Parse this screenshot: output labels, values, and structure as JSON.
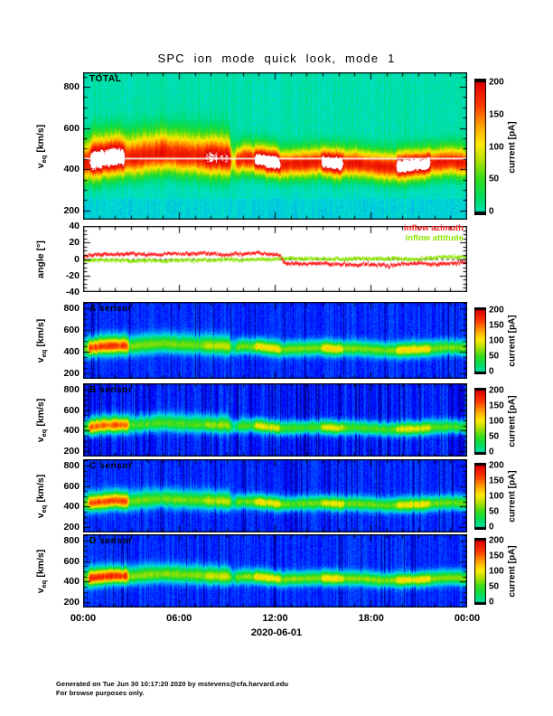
{
  "title": "SPC ion mode quick look, mode 1",
  "time_axis": {
    "ticks": [
      "00:00",
      "06:00",
      "12:00",
      "18:00",
      "00:00"
    ],
    "tick_hours": [
      0,
      6,
      12,
      18,
      24
    ],
    "minor_tick_hours": 1,
    "date": "2020-06-01",
    "hours_span": 24
  },
  "footer": {
    "line1": "Generated on Tue Jun 30 10:17:20 2020 by mstevens@cfa.harvard.edu",
    "line2": "For browse purposes only."
  },
  "colors": {
    "background": "#ffffff",
    "frame": "#000000",
    "saturated": "#ffffff",
    "azimuth": "#ff2222",
    "attitude": "#8ce600"
  },
  "colormap": {
    "stops": [
      [
        0,
        "#000082"
      ],
      [
        0.1,
        "#0000ff"
      ],
      [
        0.2,
        "#008cff"
      ],
      [
        0.3,
        "#00e1d2"
      ],
      [
        0.4,
        "#00dc64"
      ],
      [
        0.5,
        "#32dc1e"
      ],
      [
        0.6,
        "#b4e100"
      ],
      [
        0.68,
        "#ffeb00"
      ],
      [
        0.78,
        "#ffa000"
      ],
      [
        0.88,
        "#ff3c00"
      ],
      [
        1,
        "#e10000"
      ]
    ],
    "saturation_threshold": 1.03,
    "colorbar_range": [
      0.33,
      1.0
    ]
  },
  "speed_profile_kms": {
    "t": [
      0,
      1,
      2,
      3,
      4,
      5,
      6,
      7,
      8,
      9,
      9.4,
      10,
      11,
      12,
      12.4,
      13,
      14,
      15,
      16,
      17,
      18,
      19,
      20,
      21,
      22,
      23,
      24
    ],
    "v": [
      425,
      445,
      455,
      450,
      465,
      475,
      465,
      460,
      455,
      450,
      435,
      450,
      445,
      430,
      420,
      425,
      430,
      435,
      425,
      430,
      420,
      410,
      415,
      420,
      430,
      440,
      430
    ]
  },
  "chart_data": [
    {
      "id": "total",
      "type": "heatmap",
      "label": "TOTAL",
      "ylabel": {
        "var": "v",
        "sub": "eq",
        "unit": "[km/s]"
      },
      "ylim": [
        155,
        870
      ],
      "yticks": [
        200,
        400,
        600,
        800
      ],
      "y_minor": 50,
      "y_major": 200,
      "colorbar": {
        "label": "current [pA]",
        "ticks": [
          200,
          150,
          100,
          50,
          0
        ],
        "lim": [
          0,
          200
        ]
      },
      "model": {
        "levels": {
          "bg": 0.315,
          "base": 0.95,
          "first": 1.16,
          "mid": 1.02,
          "hot": 1.16
        },
        "hot_intervals": [
          [
            0.4,
            2.6
          ],
          [
            7.6,
            9.2
          ],
          [
            10.7,
            12.3
          ],
          [
            14.9,
            16.3
          ],
          [
            19.6,
            21.7
          ]
        ],
        "sigma": {
          "hi0": 75,
          "hi1": 50,
          "lo0": 58,
          "lo1": 46,
          "switch_t": 9.2
        },
        "gap_t": 9.4,
        "white_line_v": 455,
        "bg_gradient": true,
        "noise": {
          "stripe": 0.05,
          "pix": 0.06,
          "dark_prob": 0.0
        }
      }
    },
    {
      "id": "angle",
      "type": "line",
      "ylabel": {
        "var": "angle",
        "sub": "",
        "unit": "[°]"
      },
      "ylim": [
        -40,
        40
      ],
      "yticks": [
        40,
        20,
        0,
        -20,
        -40
      ],
      "y_minor": 5,
      "y_major": 20,
      "zero_line": true,
      "series": [
        {
          "name": "inflow azimuth",
          "color": "#ff2222",
          "t": [
            0,
            0.3,
            1,
            2,
            3,
            4,
            5,
            5.5,
            6,
            7,
            7.5,
            8,
            9,
            9.5,
            10,
            10.5,
            11,
            11.5,
            12,
            12.35,
            12.5,
            13,
            14,
            15,
            16,
            17,
            18,
            19,
            20,
            21,
            22,
            23,
            23.5,
            24
          ],
          "v": [
            3,
            5,
            6,
            6,
            7,
            6,
            6,
            7,
            6,
            7,
            8,
            7,
            5,
            7,
            6,
            7,
            8,
            6,
            6,
            5,
            -4,
            -5,
            -6,
            -5,
            -6,
            -7,
            -6,
            -7,
            -6,
            -5,
            -6,
            -5,
            -4,
            -5
          ]
        },
        {
          "name": "inflow attitude",
          "color": "#8ce600",
          "t": [
            0,
            1,
            2,
            3,
            4,
            5,
            6,
            7,
            8,
            9,
            10,
            11,
            12,
            12.5,
            13,
            14,
            15,
            16,
            17,
            18,
            19,
            20,
            21,
            22,
            22.8,
            23.5,
            24
          ],
          "v": [
            -1,
            -1,
            -1,
            -2,
            -1,
            -2,
            -1,
            -1,
            -1,
            0,
            -1,
            0,
            0,
            1,
            1,
            1,
            1,
            0,
            1,
            1,
            1,
            1,
            0,
            2,
            3,
            3,
            3
          ]
        }
      ]
    },
    {
      "id": "a",
      "type": "heatmap",
      "label": "A sensor",
      "ylabel": {
        "var": "v",
        "sub": "eq",
        "unit": "[km/s]"
      },
      "ylim": [
        150,
        862
      ],
      "yticks": [
        200,
        400,
        600,
        800
      ],
      "y_minor": 50,
      "y_major": 200,
      "colorbar": {
        "label": "current [pA]",
        "ticks": [
          200,
          150,
          100,
          50,
          0
        ],
        "lim": [
          0,
          200
        ]
      },
      "model": {
        "levels": {
          "bg": 0.13,
          "base": 0.56,
          "first": 0.9,
          "mid": 0.62,
          "hot": 0.7
        },
        "hot_intervals": [
          [
            0.3,
            2.8
          ],
          [
            7.6,
            9.2
          ],
          [
            10.7,
            12.3
          ],
          [
            14.9,
            16.3
          ],
          [
            19.6,
            21.7
          ]
        ],
        "sigma": {
          "hi0": 60,
          "hi1": 46,
          "lo0": 50,
          "lo1": 42,
          "switch_t": 9.2
        },
        "gap_t": 9.4,
        "white_line_v": null,
        "bg_gradient": false,
        "noise": {
          "stripe": 0.055,
          "pix": 0.055,
          "dark_prob": 0.04
        }
      }
    },
    {
      "id": "b",
      "type": "heatmap",
      "label": "B sensor",
      "ylabel": {
        "var": "v",
        "sub": "eq",
        "unit": "[km/s]"
      },
      "ylim": [
        150,
        860
      ],
      "yticks": [
        200,
        400,
        600,
        800
      ],
      "y_minor": 50,
      "y_major": 200,
      "colorbar": {
        "label": "current [pA]",
        "ticks": [
          200,
          150,
          100,
          50,
          0
        ],
        "lim": [
          0,
          200
        ]
      },
      "model": {
        "levels": {
          "bg": 0.12,
          "base": 0.52,
          "first": 0.86,
          "mid": 0.58,
          "hot": 0.66
        },
        "hot_intervals": [
          [
            0.3,
            2.8
          ],
          [
            7.6,
            9.2
          ],
          [
            10.7,
            12.3
          ],
          [
            14.9,
            16.3
          ],
          [
            19.6,
            21.7
          ]
        ],
        "sigma": {
          "hi0": 58,
          "hi1": 45,
          "lo0": 48,
          "lo1": 41,
          "switch_t": 9.2
        },
        "gap_t": 9.4,
        "white_line_v": null,
        "bg_gradient": false,
        "noise": {
          "stripe": 0.08,
          "pix": 0.06,
          "dark_prob": 0.1
        }
      }
    },
    {
      "id": "c",
      "type": "heatmap",
      "label": "C sensor",
      "ylabel": {
        "var": "v",
        "sub": "eq",
        "unit": "[km/s]"
      },
      "ylim": [
        150,
        860
      ],
      "yticks": [
        200,
        400,
        600,
        800
      ],
      "y_minor": 50,
      "y_major": 200,
      "colorbar": {
        "label": "current [pA]",
        "ticks": [
          200,
          150,
          100,
          50,
          0
        ],
        "lim": [
          0,
          200
        ]
      },
      "model": {
        "levels": {
          "bg": 0.13,
          "base": 0.55,
          "first": 0.88,
          "mid": 0.61,
          "hot": 0.68
        },
        "hot_intervals": [
          [
            0.3,
            2.8
          ],
          [
            7.6,
            9.2
          ],
          [
            10.7,
            12.3
          ],
          [
            14.9,
            16.3
          ],
          [
            19.6,
            21.7
          ]
        ],
        "sigma": {
          "hi0": 60,
          "hi1": 46,
          "lo0": 50,
          "lo1": 42,
          "switch_t": 9.2
        },
        "gap_t": 9.4,
        "white_line_v": null,
        "bg_gradient": false,
        "noise": {
          "stripe": 0.055,
          "pix": 0.055,
          "dark_prob": 0.05
        }
      }
    },
    {
      "id": "d",
      "type": "heatmap",
      "label": "D sensor",
      "ylabel": {
        "var": "v",
        "sub": "eq",
        "unit": "[km/s]"
      },
      "ylim": [
        150,
        860
      ],
      "yticks": [
        200,
        400,
        600,
        800
      ],
      "y_minor": 50,
      "y_major": 200,
      "colorbar": {
        "label": "current [pA]",
        "ticks": [
          200,
          150,
          100,
          50,
          0
        ],
        "lim": [
          0,
          200
        ]
      },
      "model": {
        "levels": {
          "bg": 0.13,
          "base": 0.57,
          "first": 0.92,
          "mid": 0.63,
          "hot": 0.7
        },
        "hot_intervals": [
          [
            0.3,
            2.8
          ],
          [
            7.6,
            9.2
          ],
          [
            10.7,
            12.3
          ],
          [
            14.9,
            16.3
          ],
          [
            19.6,
            21.7
          ]
        ],
        "sigma": {
          "hi0": 60,
          "hi1": 46,
          "lo0": 50,
          "lo1": 42,
          "switch_t": 9.2
        },
        "gap_t": 9.4,
        "white_line_v": null,
        "bg_gradient": false,
        "noise": {
          "stripe": 0.06,
          "pix": 0.055,
          "dark_prob": 0.05
        }
      }
    }
  ]
}
